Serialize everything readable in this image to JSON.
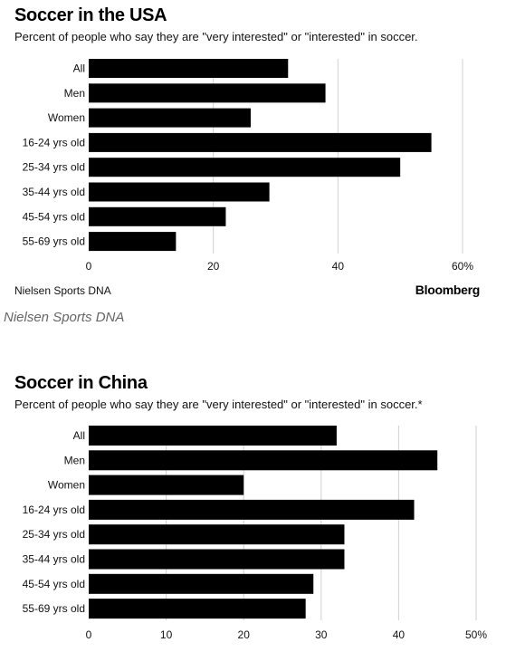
{
  "chart_data": [
    {
      "type": "bar",
      "orientation": "horizontal",
      "title": "Soccer in the USA",
      "subtitle": "Percent of people who say they are \"very interested\" or \"interested\" in soccer.",
      "categories": [
        "All",
        "Men",
        "Women",
        "16-24 yrs old",
        "25-34 yrs old",
        "35-44 yrs old",
        "45-54 yrs old",
        "55-69 yrs old"
      ],
      "values": [
        32,
        38,
        26,
        55,
        50,
        29,
        22,
        14
      ],
      "xlim": [
        0,
        60
      ],
      "xticks": [
        0,
        20,
        40,
        60
      ],
      "xtick_labels": [
        "0",
        "20",
        "40",
        "60%"
      ],
      "grid": true,
      "bar_color": "#000000",
      "source": "Nielsen Sports DNA",
      "logo": "Bloomberg"
    },
    {
      "type": "bar",
      "orientation": "horizontal",
      "title": "Soccer in China",
      "subtitle": "Percent of people who say they are \"very interested\" or \"interested\" in soccer.*",
      "categories": [
        "All",
        "Men",
        "Women",
        "16-24 yrs old",
        "25-34 yrs old",
        "35-44 yrs old",
        "45-54 yrs old",
        "55-69 yrs old"
      ],
      "values": [
        32,
        45,
        20,
        42,
        33,
        33,
        29,
        28
      ],
      "xlim": [
        0,
        50
      ],
      "xticks": [
        0,
        10,
        20,
        30,
        40,
        50
      ],
      "xtick_labels": [
        "0",
        "10",
        "20",
        "30",
        "40",
        "50%"
      ],
      "grid": true,
      "bar_color": "#000000"
    }
  ],
  "caption": "Nielsen Sports DNA"
}
